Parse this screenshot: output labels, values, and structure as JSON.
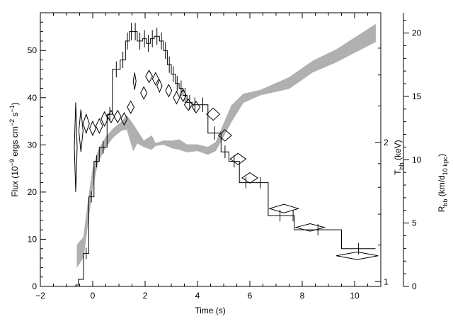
{
  "chart_data": {
    "type": "line",
    "title": "",
    "xlabel": "Time (s)",
    "ylabel_left": {
      "prefix": "Flux (10",
      "exp1": "−9",
      "mid": " ergs cm",
      "exp2": "−2",
      "mid2": " s",
      "exp3": "−1",
      "suffix": ")"
    },
    "ylabel_kt": {
      "main": "T",
      "sub": "bb",
      "suffix": " (keV)"
    },
    "ylabel_radius": {
      "main": "R",
      "sub": "bb",
      "suffix1": " (km/d",
      "sub2": "10 kpc",
      "suffix2": ")"
    },
    "xlim": [
      -2,
      11
    ],
    "ylim_flux": [
      0,
      58
    ],
    "ylim_radius": [
      0,
      21.6
    ],
    "xticks": [
      -2,
      0,
      2,
      4,
      6,
      8,
      10
    ],
    "yticks_flux": [
      0,
      10,
      20,
      30,
      40,
      50
    ],
    "yticks_radius": [
      0,
      5,
      10,
      15,
      20
    ],
    "yticks_kt": [
      {
        "label": "1",
        "flux_equiv": 1
      },
      {
        "label": "2",
        "flux_equiv": 30.5
      }
    ],
    "grid": false,
    "series": [
      {
        "kind": "flux-histogram",
        "color": "#000000",
        "steps": [
          [
            -0.65,
            0.3
          ],
          [
            -0.55,
            1.5
          ],
          [
            -0.35,
            7
          ],
          [
            -0.15,
            19
          ],
          [
            0.05,
            26.5
          ],
          [
            0.25,
            29.5
          ],
          [
            0.55,
            36.5
          ],
          [
            0.75,
            46
          ],
          [
            1.05,
            48
          ],
          [
            1.25,
            52
          ],
          [
            1.4,
            54
          ],
          [
            1.55,
            54
          ],
          [
            1.7,
            52
          ],
          [
            1.9,
            52.5
          ],
          [
            2.05,
            51.5
          ],
          [
            2.2,
            52.5
          ],
          [
            2.35,
            53
          ],
          [
            2.55,
            52
          ],
          [
            2.7,
            50
          ],
          [
            2.85,
            47
          ],
          [
            3.0,
            45
          ],
          [
            3.15,
            43
          ],
          [
            3.3,
            42
          ],
          [
            3.45,
            40.5
          ],
          [
            3.6,
            39
          ],
          [
            3.8,
            38.5
          ],
          [
            4.0,
            38.5
          ],
          [
            4.4,
            32.5
          ],
          [
            4.9,
            28.5
          ],
          [
            5.2,
            26.5
          ],
          [
            5.6,
            22
          ],
          [
            6.1,
            22
          ],
          [
            6.7,
            15
          ],
          [
            7.6,
            15
          ],
          [
            7.7,
            12
          ],
          [
            9.5,
            8
          ],
          [
            10.8,
            8
          ]
        ]
      },
      {
        "kind": "kT-diamonds",
        "color": "#000000",
        "points": [
          [
            -0.65,
            29.5,
            0.03,
            9.5
          ],
          [
            -0.45,
            33,
            0.08,
            4.5
          ],
          [
            -0.25,
            34.5,
            0.12,
            2
          ],
          [
            0.0,
            33.5,
            0.12,
            1.5
          ],
          [
            0.25,
            34,
            0.13,
            1.5
          ],
          [
            0.45,
            35.5,
            0.13,
            1.5
          ],
          [
            0.7,
            36,
            0.13,
            1.3
          ],
          [
            0.95,
            36,
            0.13,
            1.3
          ],
          [
            1.2,
            35.5,
            0.12,
            1.3
          ],
          [
            1.45,
            38,
            0.13,
            1.3
          ],
          [
            1.6,
            43.5,
            0.05,
            1.8
          ],
          [
            1.95,
            41,
            0.12,
            1.3
          ],
          [
            2.15,
            44.5,
            0.13,
            1.3
          ],
          [
            2.4,
            44,
            0.12,
            1.3
          ],
          [
            2.55,
            42.5,
            0.1,
            1.3
          ],
          [
            2.9,
            41.5,
            0.12,
            1.3
          ],
          [
            3.2,
            40,
            0.12,
            1.3
          ],
          [
            3.45,
            40.5,
            0.12,
            1.3
          ],
          [
            3.65,
            38.5,
            0.15,
            1.2
          ],
          [
            3.95,
            38,
            0.15,
            1.2
          ],
          [
            4.6,
            36.5,
            0.25,
            1.3
          ],
          [
            5.05,
            32,
            0.25,
            1.2
          ],
          [
            5.55,
            27,
            0.3,
            1.2
          ],
          [
            6.0,
            23,
            0.3,
            1.1
          ],
          [
            7.3,
            16.5,
            0.55,
            0.9
          ],
          [
            8.3,
            12.5,
            0.55,
            0.8
          ],
          [
            10.1,
            6.5,
            0.8,
            0.8
          ]
        ]
      },
      {
        "kind": "radius-band",
        "color": "#b0b0b0",
        "upper": [
          [
            -0.6,
            3.3
          ],
          [
            -0.35,
            3.9
          ],
          [
            -0.15,
            7.2
          ],
          [
            0.0,
            9.3
          ],
          [
            0.2,
            10.7
          ],
          [
            0.5,
            11.8
          ],
          [
            0.8,
            12.5
          ],
          [
            1.1,
            13.0
          ],
          [
            1.3,
            13.5
          ],
          [
            1.55,
            12.8
          ],
          [
            1.7,
            12.3
          ],
          [
            1.95,
            11.5
          ],
          [
            2.25,
            11.9
          ],
          [
            2.4,
            11.3
          ],
          [
            2.7,
            11.5
          ],
          [
            3.05,
            11.5
          ],
          [
            3.3,
            11.6
          ],
          [
            3.6,
            11.2
          ],
          [
            4.0,
            11.2
          ],
          [
            4.4,
            11.0
          ],
          [
            4.7,
            11.4
          ],
          [
            5.3,
            14.3
          ],
          [
            5.75,
            15.2
          ],
          [
            6.4,
            15.5
          ],
          [
            7.5,
            16.5
          ],
          [
            8.4,
            17.8
          ],
          [
            9.3,
            18.7
          ],
          [
            10.8,
            20.7
          ]
        ],
        "lower": [
          [
            -0.6,
            1.5
          ],
          [
            -0.35,
            2.3
          ],
          [
            -0.15,
            5.5
          ],
          [
            0.0,
            7.8
          ],
          [
            0.2,
            9.8
          ],
          [
            0.5,
            11.0
          ],
          [
            0.8,
            11.8
          ],
          [
            1.1,
            12.3
          ],
          [
            1.3,
            12.4
          ],
          [
            1.55,
            10.7
          ],
          [
            1.7,
            11.3
          ],
          [
            1.95,
            11.0
          ],
          [
            2.25,
            10.8
          ],
          [
            2.4,
            11.1
          ],
          [
            2.7,
            11.2
          ],
          [
            3.05,
            10.9
          ],
          [
            3.3,
            10.8
          ],
          [
            3.6,
            10.6
          ],
          [
            4.0,
            10.7
          ],
          [
            4.4,
            10.4
          ],
          [
            4.7,
            10.7
          ],
          [
            5.3,
            13.0
          ],
          [
            5.75,
            14.5
          ],
          [
            6.4,
            15.1
          ],
          [
            7.5,
            15.6
          ],
          [
            8.4,
            16.9
          ],
          [
            9.3,
            17.7
          ],
          [
            10.8,
            19.3
          ]
        ]
      }
    ]
  }
}
